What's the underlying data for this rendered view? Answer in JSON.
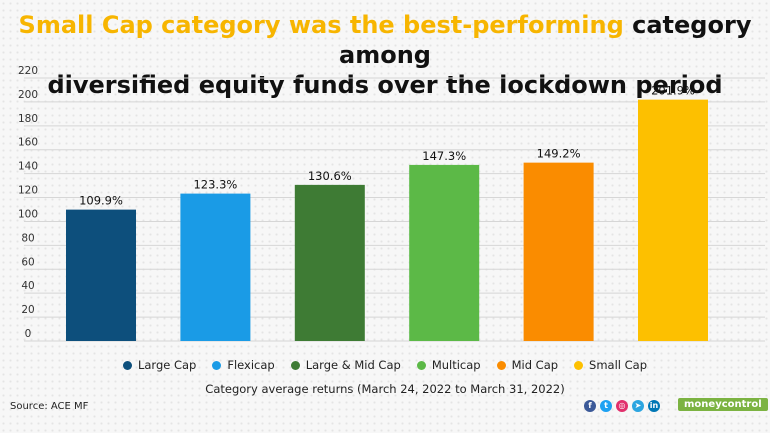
{
  "title": {
    "highlight": "Small Cap category was the best-performing",
    "line1_rest": " category among",
    "line2": "diversified equity funds over the lockdown period"
  },
  "chart_data": {
    "type": "bar",
    "title": "Small Cap category was the best-performing category among diversified equity funds over the lockdown period",
    "categories": [
      "Large Cap",
      "Flexicap",
      "Large & Mid Cap",
      "Multicap",
      "Mid Cap",
      "Small Cap"
    ],
    "values": [
      109.9,
      123.3,
      130.6,
      147.3,
      149.2,
      201.9
    ],
    "data_labels": [
      "109.9%",
      "123.3%",
      "130.6%",
      "147.3%",
      "149.2%",
      "201.9%"
    ],
    "colors": [
      "#0d4f7c",
      "#1a9be6",
      "#3e7b34",
      "#5cb947",
      "#fa8c00",
      "#fdc000"
    ],
    "xlabel": "Category average returns (March 24, 2022 to March 31, 2022)",
    "ylabel": "",
    "ylim": [
      0,
      220
    ],
    "yticks": [
      0,
      20,
      40,
      60,
      80,
      100,
      120,
      140,
      160,
      180,
      200,
      220
    ],
    "grid": true,
    "legend": "bottom"
  },
  "footer": {
    "source": "Source: ACE MF",
    "brand": "moneycontrol",
    "social_icons": [
      "facebook-icon",
      "twitter-icon",
      "instagram-icon",
      "telegram-icon",
      "linkedin-icon"
    ],
    "social_colors": [
      "#3b5998",
      "#1da1f2",
      "#e1306c",
      "#2ca5e0",
      "#0077b5"
    ],
    "social_glyphs": [
      "f",
      "t",
      "◎",
      "➤",
      "in"
    ]
  }
}
